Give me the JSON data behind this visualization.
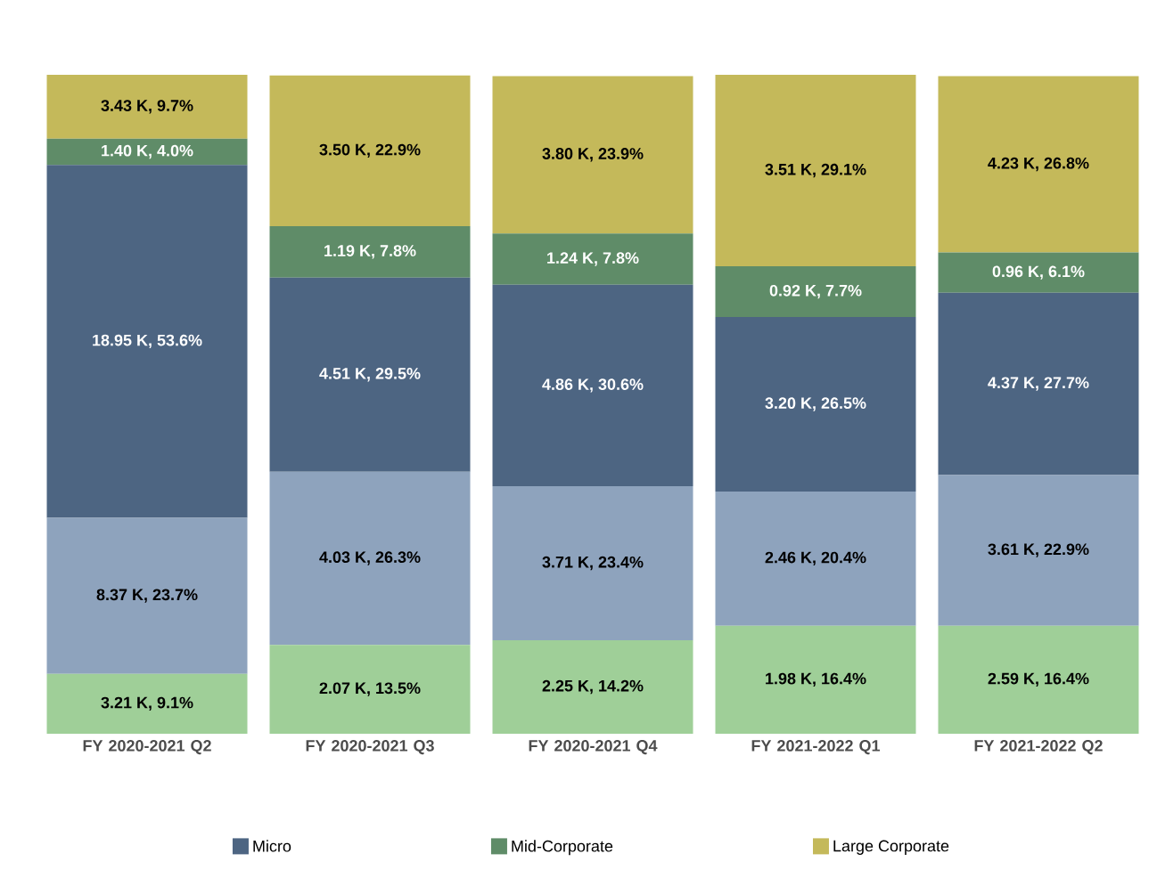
{
  "chart_data": {
    "type": "bar",
    "stacked": true,
    "legend": "bottom",
    "categories": [
      "FY 2020-2021 Q2",
      "FY 2020-2021 Q3",
      "FY 2020-2021 Q4",
      "FY 2021-2022 Q1",
      "FY 2021-2022 Q2"
    ],
    "series": [
      {
        "color": "#9fcf98",
        "values": [
          9.1,
          13.5,
          14.2,
          16.4,
          16.4
        ],
        "value_labels": [
          "3.21 K, 9.1%",
          "2.07 K, 13.5%",
          "2.25 K, 14.2%",
          "1.98 K, 16.4%",
          "2.59 K, 16.4%"
        ]
      },
      {
        "color": "#8ea3bd",
        "values": [
          23.7,
          26.3,
          23.4,
          20.4,
          22.9
        ],
        "value_labels": [
          "8.37 K, 23.7%",
          "4.03 K, 26.3%",
          "3.71 K, 23.4%",
          "2.46 K, 20.4%",
          "3.61 K, 22.9%"
        ]
      },
      {
        "name": "Micro",
        "color": "#4d6582",
        "values": [
          53.6,
          29.5,
          30.6,
          26.5,
          27.7
        ],
        "value_labels": [
          "18.95 K, 53.6%",
          "4.51 K, 29.5%",
          "4.86 K, 30.6%",
          "3.20 K, 26.5%",
          "4.37 K, 27.7%"
        ]
      },
      {
        "name": "Mid-Corporate",
        "color": "#5f8c68",
        "values": [
          4.0,
          7.8,
          7.8,
          7.7,
          6.1
        ],
        "value_labels": [
          "1.40 K, 4.0%",
          "1.19 K, 7.8%",
          "1.24 K, 7.8%",
          "0.92 K, 7.7%",
          "0.96 K, 6.1%"
        ]
      },
      {
        "name": "Large Corporate",
        "color": "#c4b95a",
        "values": [
          9.7,
          22.9,
          23.9,
          29.1,
          26.8
        ],
        "value_labels": [
          "3.43 K, 9.7%",
          "3.50 K, 22.9%",
          "3.80 K, 23.9%",
          "3.51 K, 29.1%",
          "4.23 K, 26.8%"
        ]
      }
    ]
  }
}
